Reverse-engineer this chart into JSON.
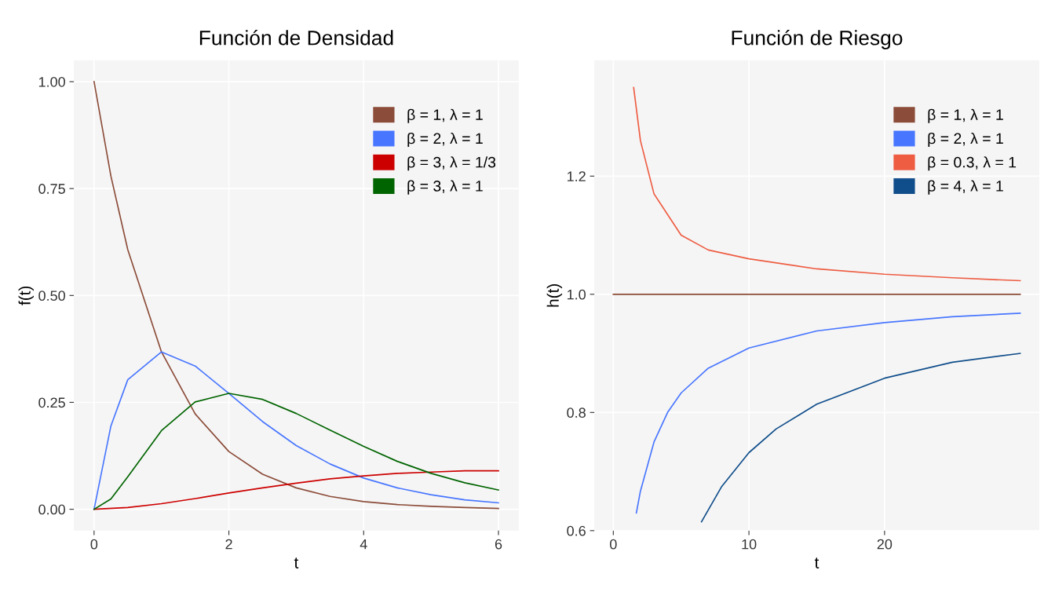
{
  "chart_data": [
    {
      "type": "line",
      "title": "Función de Densidad",
      "xlabel": "t",
      "ylabel": "f(t)",
      "xlim": [
        -0.3,
        6.3
      ],
      "ylim": [
        -0.05,
        1.05
      ],
      "xticks": [
        0,
        2,
        4,
        6
      ],
      "yticks": [
        {
          "value": 0,
          "label": "0.00"
        },
        {
          "value": 0.25,
          "label": "0.25"
        },
        {
          "value": 0.5,
          "label": "0.50"
        },
        {
          "value": 0.75,
          "label": "0.75"
        },
        {
          "value": 1,
          "label": "1.00"
        }
      ],
      "grid": true,
      "legend": "top right",
      "series": [
        {
          "name": "β = 1, λ = 1",
          "color": "#8b4c39",
          "x": [
            0,
            0.25,
            0.5,
            1,
            1.5,
            2,
            2.5,
            3,
            3.5,
            4,
            4.5,
            5,
            5.5,
            6
          ],
          "values": [
            1,
            0.779,
            0.607,
            0.368,
            0.223,
            0.135,
            0.082,
            0.05,
            0.03,
            0.018,
            0.011,
            0.007,
            0.004,
            0.002
          ]
        },
        {
          "name": "β = 2, λ = 1",
          "color": "#4876ff",
          "x": [
            0,
            0.25,
            0.5,
            1,
            1.5,
            2,
            2.5,
            3,
            3.5,
            4,
            4.5,
            5,
            5.5,
            6
          ],
          "values": [
            0,
            0.195,
            0.303,
            0.368,
            0.335,
            0.271,
            0.205,
            0.149,
            0.106,
            0.073,
            0.05,
            0.034,
            0.022,
            0.015
          ]
        },
        {
          "name": "β = 3, λ = 1/3",
          "color": "#cd0000",
          "x": [
            0,
            0.5,
            1,
            1.5,
            2,
            2.5,
            3,
            3.5,
            4,
            4.5,
            5,
            5.5,
            6
          ],
          "values": [
            0,
            0.004,
            0.013,
            0.025,
            0.038,
            0.05,
            0.061,
            0.071,
            0.078,
            0.084,
            0.087,
            0.09,
            0.09
          ]
        },
        {
          "name": "β = 3, λ = 1",
          "color": "#006400",
          "x": [
            0,
            0.25,
            0.5,
            1,
            1.5,
            2,
            2.5,
            3,
            3.5,
            4,
            4.5,
            5,
            5.5,
            6
          ],
          "values": [
            0,
            0.024,
            0.076,
            0.184,
            0.251,
            0.271,
            0.257,
            0.224,
            0.185,
            0.147,
            0.112,
            0.084,
            0.062,
            0.045
          ]
        }
      ]
    },
    {
      "type": "line",
      "title": "Función de Riesgo",
      "xlabel": "t",
      "ylabel": "h(t)",
      "xlim": [
        -1.4,
        31.4
      ],
      "ylim": [
        0.6,
        1.396
      ],
      "xticks": [
        0,
        10,
        20
      ],
      "yticks": [
        0.6,
        0.8,
        {
          "value": 1,
          "label": "1.0"
        },
        1.2
      ],
      "grid": true,
      "legend": "top right",
      "series": [
        {
          "name": "β = 1, λ = 1",
          "color": "#8b4c39",
          "x": [
            0,
            30
          ],
          "values": [
            1,
            1
          ]
        },
        {
          "name": "β = 2, λ = 1",
          "color": "#4876ff",
          "x": [
            1.7,
            2,
            3,
            4,
            5,
            7,
            10,
            15,
            20,
            25,
            30
          ],
          "values": [
            0.63,
            0.667,
            0.75,
            0.8,
            0.833,
            0.875,
            0.909,
            0.938,
            0.952,
            0.962,
            0.968
          ]
        },
        {
          "name": "β = 0.3, λ = 1",
          "color": "#ee5c42",
          "x": [
            1.5,
            2,
            3,
            5,
            7,
            10,
            15,
            20,
            25,
            30
          ],
          "values": [
            1.35,
            1.26,
            1.17,
            1.1,
            1.075,
            1.06,
            1.043,
            1.034,
            1.028,
            1.023
          ]
        },
        {
          "name": "β = 4, λ = 1",
          "color": "#104e8b",
          "x": [
            6.5,
            8,
            10,
            12,
            15,
            20,
            25,
            30
          ],
          "values": [
            0.615,
            0.675,
            0.732,
            0.772,
            0.814,
            0.858,
            0.885,
            0.9
          ]
        }
      ]
    }
  ]
}
